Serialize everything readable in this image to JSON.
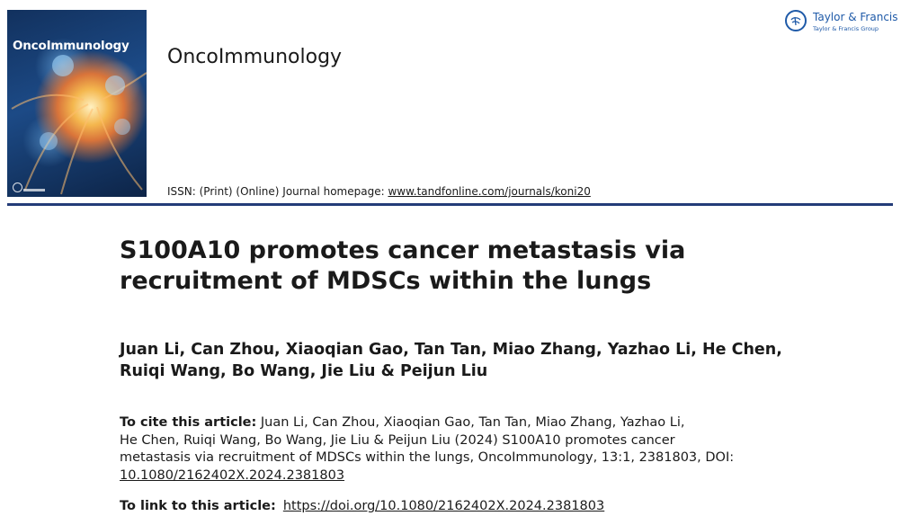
{
  "cover": {
    "title": "OncoImmunology"
  },
  "header": {
    "journal_name": "OncoImmunology",
    "issn_text": "ISSN: (Print) (Online) Journal homepage: ",
    "homepage_link": "www.tandfonline.com/journals/koni20"
  },
  "publisher": {
    "name": "Taylor & Francis",
    "group": "Taylor & Francis Group",
    "color": "#1f5aa8"
  },
  "article": {
    "title_line1": "S100A10 promotes cancer metastasis via",
    "title_line2": "recruitment of MDSCs within the lungs",
    "authors_line1": "Juan Li, Can Zhou, Xiaoqian Gao, Tan Tan, Miao Zhang, Yazhao Li, He Chen,",
    "authors_line2": "Ruiqi Wang, Bo Wang, Jie Liu & Peijun Liu"
  },
  "citation": {
    "label": "To cite this article:",
    "line1": " Juan Li, Can Zhou, Xiaoqian Gao, Tan Tan, Miao Zhang, Yazhao Li,",
    "line2": "He Chen, Ruiqi Wang, Bo Wang, Jie Liu & Peijun Liu (2024) S100A10 promotes cancer",
    "line3": "metastasis via recruitment of MDSCs within the lungs, OncoImmunology, 13:1, 2381803, DOI:",
    "doi": "10.1080/2162402X.2024.2381803"
  },
  "link": {
    "label": "To link to this article:",
    "url": "https://doi.org/10.1080/2162402X.2024.2381803"
  },
  "colors": {
    "rule": "#233c78",
    "text": "#1a1a1a"
  }
}
